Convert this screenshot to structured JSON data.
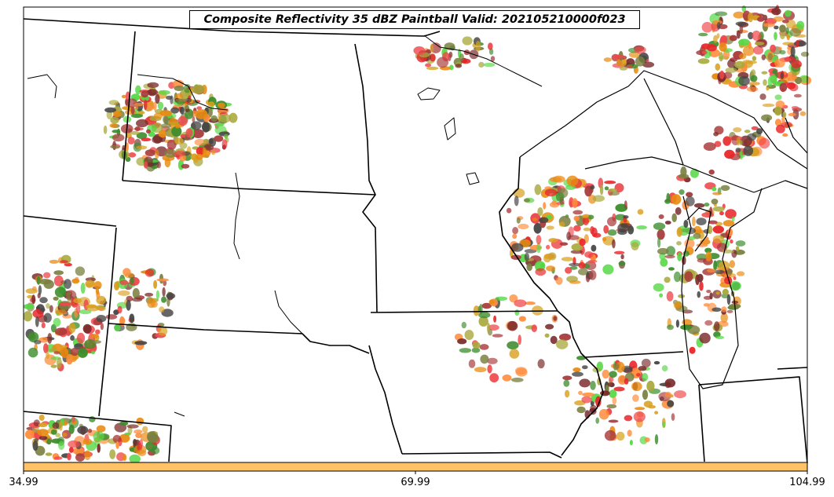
{
  "title": "Composite Reflectivity 35 dBZ Paintball Valid: 202105210000f023",
  "colorbar": {
    "color": "#ffc266",
    "ticks": [
      "34.99",
      "69.99",
      "104.99"
    ]
  },
  "paint_colors": [
    "#e8262a",
    "#f0484c",
    "#ff8c3a",
    "#e88a10",
    "#a83a3a",
    "#7a2a2a",
    "#3c8c2c",
    "#55d845",
    "#a8a83c",
    "#7a8040",
    "#444444",
    "#d8a020"
  ],
  "map": {
    "land": "#ffffff",
    "boundary_color": "#000000"
  }
}
